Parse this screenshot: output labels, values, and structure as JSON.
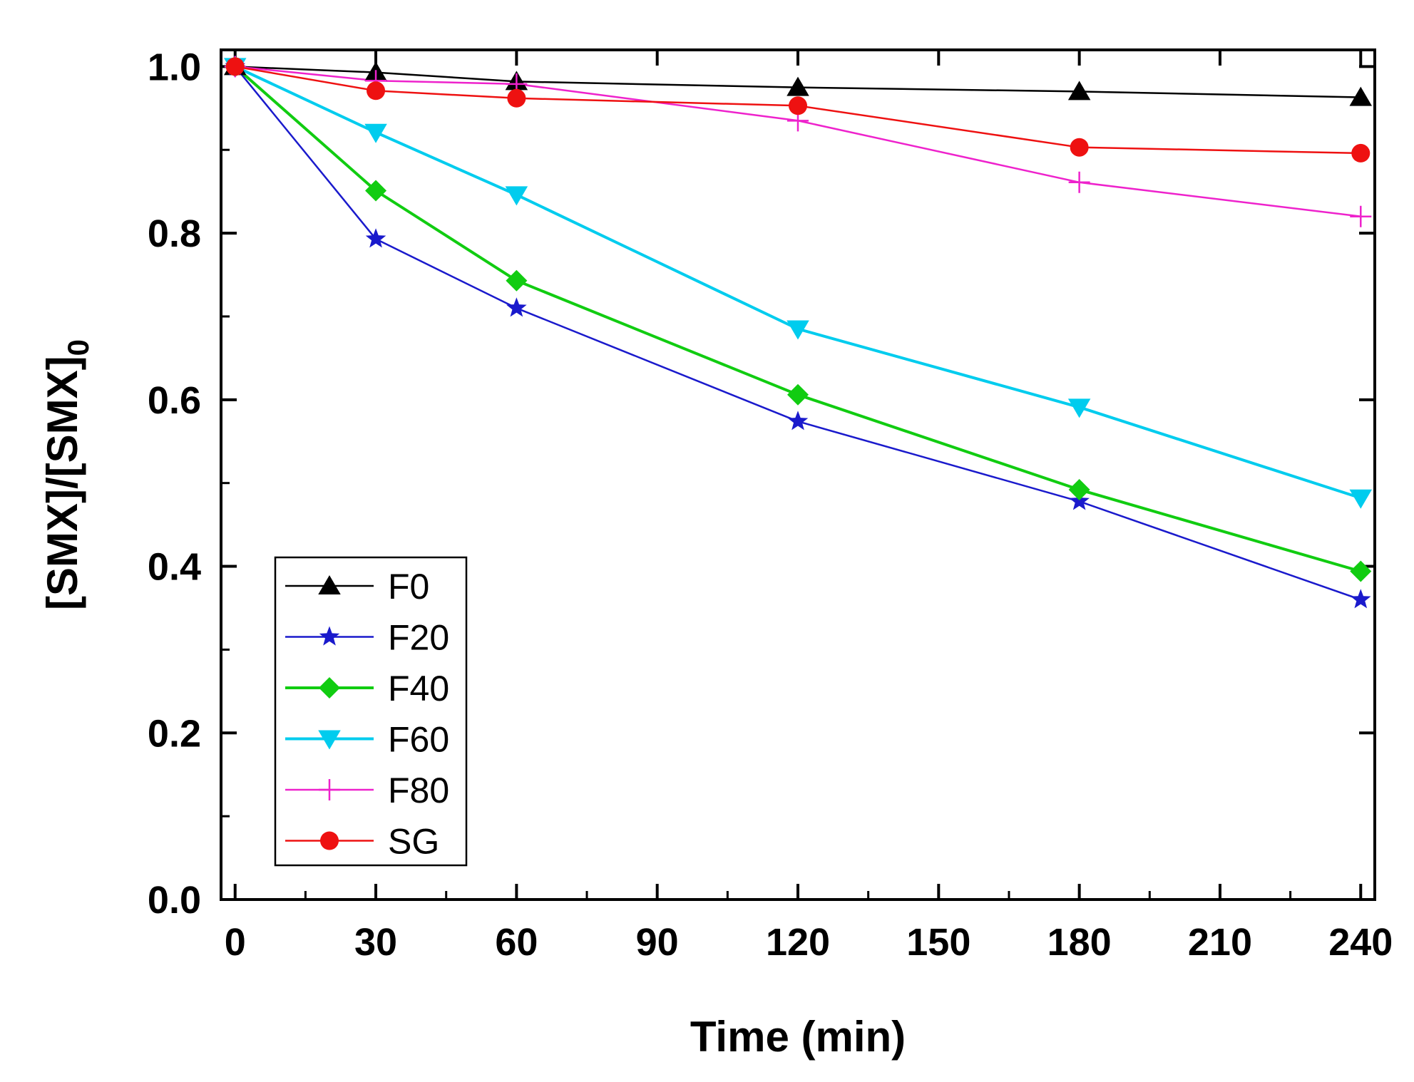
{
  "chart_data": {
    "type": "line",
    "title": "",
    "xlabel": "Time (min)",
    "ylabel_main": "[SMX]/[SMX]",
    "ylabel_sub": "0",
    "xlim": [
      -3,
      243
    ],
    "ylim": [
      0,
      1.02
    ],
    "xticks": [
      0,
      30,
      60,
      90,
      120,
      150,
      180,
      210,
      240
    ],
    "xtick_labels": [
      "0",
      "30",
      "60",
      "90",
      "120",
      "150",
      "180",
      "210",
      "240"
    ],
    "yticks": [
      0.0,
      0.2,
      0.4,
      0.6,
      0.8,
      1.0
    ],
    "ytick_labels": [
      "0.0",
      "0.2",
      "0.4",
      "0.6",
      "0.8",
      "1.0"
    ],
    "grid": false,
    "legend_position": "bottom-left",
    "series": [
      {
        "name": "F0",
        "color": "#000000",
        "marker": "triangle-up",
        "x": [
          0,
          30,
          60,
          120,
          180,
          240
        ],
        "y": [
          1.0,
          0.993,
          0.982,
          0.975,
          0.97,
          0.963
        ]
      },
      {
        "name": "F20",
        "color": "#1a1acc",
        "marker": "star",
        "x": [
          0,
          30,
          60,
          120,
          180,
          240
        ],
        "y": [
          1.0,
          0.793,
          0.71,
          0.574,
          0.478,
          0.36
        ]
      },
      {
        "name": "F40",
        "color": "#11cc11",
        "marker": "diamond",
        "x": [
          0,
          30,
          60,
          120,
          180,
          240
        ],
        "y": [
          1.0,
          0.851,
          0.743,
          0.606,
          0.492,
          0.394
        ]
      },
      {
        "name": "F60",
        "color": "#00ccee",
        "marker": "triangle-down",
        "x": [
          0,
          30,
          60,
          120,
          180,
          240
        ],
        "y": [
          1.0,
          0.921,
          0.846,
          0.685,
          0.591,
          0.482
        ]
      },
      {
        "name": "F80",
        "color": "#ee22cc",
        "marker": "plus",
        "x": [
          0,
          30,
          60,
          120,
          180,
          240
        ],
        "y": [
          1.0,
          0.983,
          0.979,
          0.935,
          0.861,
          0.82
        ]
      },
      {
        "name": "SG",
        "color": "#ee1111",
        "marker": "circle",
        "x": [
          0,
          30,
          60,
          120,
          180,
          240
        ],
        "y": [
          1.0,
          0.971,
          0.962,
          0.953,
          0.903,
          0.896
        ]
      }
    ]
  }
}
